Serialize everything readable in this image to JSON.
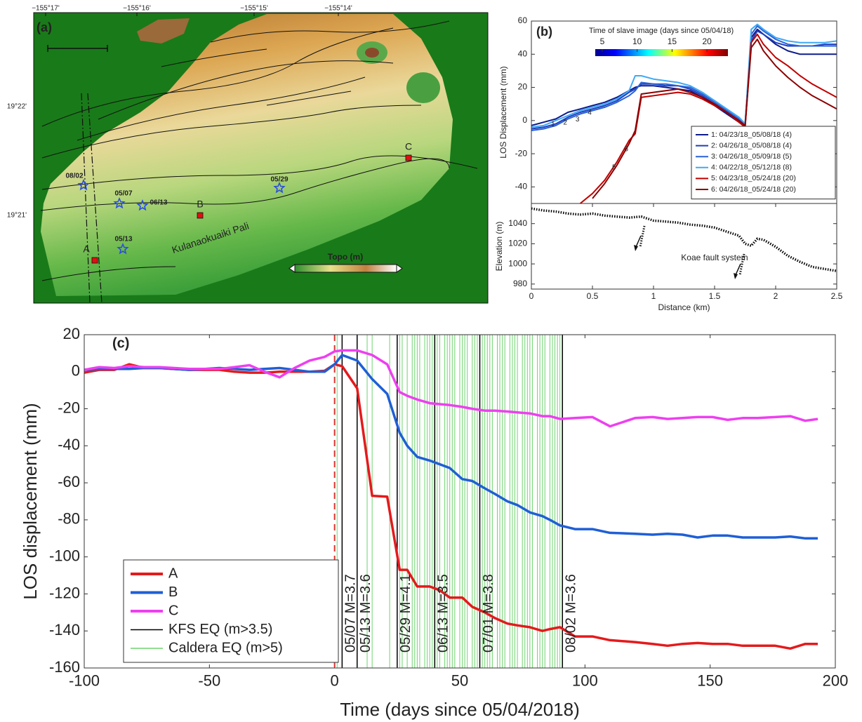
{
  "chart_data": [
    {
      "type": "map",
      "title": "(a)",
      "xtick_labels": [
        "−155°17'",
        "−155°16'",
        "−155°15'",
        "−155°14'"
      ],
      "ytick_labels": [
        "19°22'",
        "19°21'"
      ],
      "stars": [
        "08/02",
        "05/07",
        "06/13",
        "05/29",
        "05/13"
      ],
      "sites": [
        "A",
        "B",
        "C"
      ],
      "annotation": "Kulanaokuaiki Pali",
      "colorbar_label": "Topo (m)"
    },
    {
      "type": "line",
      "title": "(b)",
      "x": [
        0,
        0.1,
        0.2,
        0.3,
        0.4,
        0.5,
        0.6,
        0.7,
        0.8,
        0.85,
        0.9,
        1.0,
        1.1,
        1.2,
        1.3,
        1.4,
        1.5,
        1.6,
        1.7,
        1.75,
        1.8,
        1.85,
        1.9,
        2.0,
        2.1,
        2.2,
        2.3,
        2.4,
        2.5
      ],
      "series": [
        {
          "name": "1: 04/23/18_05/08/18 (4)",
          "tag": "1",
          "color": "#0d1b8c",
          "values": [
            -3,
            -1,
            1,
            5,
            7,
            9,
            11,
            14,
            18,
            20,
            21,
            21,
            20,
            19,
            18,
            14,
            9,
            4,
            -1,
            -3,
            50,
            55,
            52,
            46,
            42,
            40,
            40,
            40,
            40
          ]
        },
        {
          "name": "2: 04/26/18_05/08/18 (4)",
          "tag": "2",
          "color": "#1f3fbf",
          "values": [
            -5,
            -4,
            -2,
            2,
            5,
            7,
            9,
            12,
            17,
            19,
            22,
            22,
            21,
            21,
            19,
            15,
            10,
            5,
            0,
            -2,
            48,
            54,
            52,
            47,
            45,
            45,
            45,
            46,
            46
          ]
        },
        {
          "name": "3: 04/26/18_05/09/18 (5)",
          "tag": "3",
          "color": "#2a62d6",
          "values": [
            -6,
            -5,
            -3,
            1,
            4,
            6,
            8,
            11,
            15,
            18,
            23,
            22,
            22,
            21,
            20,
            16,
            11,
            6,
            1,
            -3,
            52,
            57,
            54,
            49,
            46,
            45,
            45,
            45,
            45
          ]
        },
        {
          "name": "4: 04/22/18_05/12/18 (8)",
          "tag": "4",
          "color": "#3fa9f5",
          "values": [
            -4,
            -3,
            0,
            3,
            6,
            8,
            10,
            13,
            18,
            27,
            27,
            25,
            24,
            23,
            21,
            17,
            12,
            7,
            2,
            -2,
            55,
            58,
            55,
            50,
            48,
            47,
            47,
            47,
            48
          ]
        },
        {
          "name": "5: 04/23/18_05/24/18 (20)",
          "tag": "5",
          "color": "#c00000",
          "values": [
            null,
            null,
            null,
            null,
            -50,
            -44,
            -36,
            -25,
            -12,
            -8,
            14,
            15,
            16,
            17,
            16,
            13,
            9,
            5,
            -1,
            -4,
            47,
            52,
            46,
            38,
            33,
            27,
            22,
            18,
            14
          ]
        },
        {
          "name": "6: 04/26/18_05/24/18 (20)",
          "tag": "6",
          "color": "#8b0000",
          "values": [
            null,
            null,
            null,
            null,
            null,
            -47,
            -38,
            -27,
            -14,
            -6,
            16,
            17,
            18,
            19,
            17,
            14,
            10,
            5,
            0,
            -3,
            44,
            49,
            42,
            33,
            26,
            20,
            15,
            11,
            7
          ]
        }
      ],
      "xlim": [
        0,
        2.5
      ],
      "ylim": [
        -50,
        60
      ],
      "yticks": [
        -40,
        -20,
        0,
        20,
        40,
        60
      ],
      "ylabel": "LOS Displacement (mm)",
      "legend": "lower right",
      "colorbar": {
        "label": "Time of slave image (days since 05/04/18)",
        "lim": [
          4,
          23
        ],
        "ticks": [
          5,
          10,
          15,
          20
        ]
      }
    },
    {
      "type": "line",
      "x": [
        0,
        0.1,
        0.2,
        0.3,
        0.4,
        0.5,
        0.6,
        0.7,
        0.8,
        0.9,
        1.0,
        1.1,
        1.2,
        1.3,
        1.4,
        1.5,
        1.6,
        1.7,
        1.75,
        1.8,
        1.85,
        1.9,
        2.0,
        2.1,
        2.2,
        2.3,
        2.5
      ],
      "series": [
        {
          "color": "#000000",
          "values": [
            1055,
            1053,
            1052,
            1050,
            1049,
            1050,
            1048,
            1047,
            1046,
            1047,
            1043,
            1042,
            1041,
            1039,
            1038,
            1036,
            1032,
            1028,
            1020,
            1018,
            1025,
            1024,
            1017,
            1008,
            1002,
            997,
            993
          ]
        }
      ],
      "xlim": [
        0,
        2.5
      ],
      "xticks": [
        0,
        0.5,
        1,
        1.5,
        2,
        2.5
      ],
      "ylim": [
        975,
        1060
      ],
      "yticks": [
        980,
        1000,
        1020,
        1040
      ],
      "xlabel": "Distance (km)",
      "ylabel": "Elevation (m)",
      "annotation": "Koae fault system"
    },
    {
      "type": "line",
      "title": "(c)",
      "x": [
        -100,
        -94,
        -88,
        -82,
        -76,
        -70,
        -58,
        -46,
        -40,
        -34,
        -28,
        -22,
        -16,
        -10,
        -4,
        0,
        3,
        9,
        15,
        21,
        26,
        29,
        33,
        38,
        42,
        46,
        51,
        55,
        60,
        64,
        69,
        73,
        78,
        83,
        86,
        90,
        96,
        103,
        110,
        120,
        127,
        133,
        139,
        145,
        151,
        157,
        163,
        169,
        176,
        182,
        188,
        193
      ],
      "series": [
        {
          "name": "A",
          "color": "#e41a1c",
          "values": [
            -0.5,
            1,
            1,
            4,
            2,
            2,
            1,
            1,
            0,
            -0.5,
            -0.5,
            0,
            0,
            0,
            0.5,
            4,
            3,
            -9,
            -67,
            -67.5,
            -107,
            -107,
            -116,
            -116,
            -118,
            -122,
            -122,
            -127,
            -130,
            -133,
            -136,
            -137,
            -138,
            -140,
            -139,
            -138,
            -143,
            -143,
            -145,
            -146,
            -147,
            -148,
            -147,
            -146.5,
            -147,
            -147,
            -148,
            -148,
            -148,
            -149.5,
            -147,
            -147
          ]
        },
        {
          "name": "B",
          "color": "#1f5fd6",
          "values": [
            1,
            1.5,
            1.5,
            1.5,
            2,
            2,
            1,
            2,
            1.5,
            1,
            1.5,
            2,
            1,
            0,
            0,
            4,
            9,
            6,
            -4,
            -12,
            -33,
            -40,
            -46,
            -48,
            -50,
            -52,
            -58,
            -59,
            -63,
            -66,
            -70,
            -72,
            -76,
            -78,
            -80,
            -83,
            -85,
            -85,
            -87,
            -87.5,
            -88,
            -87.5,
            -88,
            -89.5,
            -88.5,
            -88.5,
            -89.5,
            -89.5,
            -89.5,
            -89,
            -90,
            -90
          ]
        },
        {
          "name": "C",
          "color": "#ee3ff0",
          "values": [
            1,
            2.5,
            2,
            3,
            2.5,
            2.5,
            1.5,
            1.5,
            2.5,
            3.5,
            0,
            -3,
            2,
            6,
            8,
            11,
            11.5,
            11.5,
            9,
            4,
            -11,
            -13,
            -15,
            -17,
            -17.5,
            -18,
            -19,
            -20,
            -21,
            -21,
            -21.5,
            -22,
            -22.5,
            -24,
            -24,
            -25.5,
            -25,
            -24.5,
            -29.5,
            -25,
            -24.5,
            -25.5,
            -25,
            -24.5,
            -24.5,
            -26,
            -25,
            -25,
            -24.5,
            -24,
            -26.5,
            -25.5
          ]
        }
      ],
      "events": [
        {
          "name": "KFS EQ (m>3.5)",
          "color": "#000000",
          "x": [
            3,
            9,
            25,
            40,
            58,
            91
          ],
          "labels": [
            "05/07 M=3.7",
            "05/13 M=3.6",
            "05/29 M=4.1",
            "06/13 M=3.5",
            "07/01 M=3.8",
            "08/02 M=3.6"
          ]
        },
        {
          "name": "Caldera EQ (m>5)",
          "color": "#6fd36f",
          "x": [
            1,
            13,
            15,
            22,
            26,
            27,
            29,
            31,
            32,
            33,
            34,
            36,
            37,
            38,
            39,
            41,
            42,
            44,
            45,
            46,
            47,
            48,
            50,
            51,
            52,
            53,
            55,
            56,
            57,
            59,
            60,
            61,
            62,
            63,
            65,
            66,
            67,
            68,
            70,
            71,
            72,
            73,
            75,
            76,
            77,
            78,
            79,
            81,
            82,
            83,
            84,
            86,
            87,
            88,
            89,
            90
          ]
        }
      ],
      "marker_line": {
        "x": 0,
        "color": "#e03030"
      },
      "xlim": [
        -100,
        200
      ],
      "xticks": [
        -100,
        -50,
        0,
        50,
        100,
        150,
        200
      ],
      "ylim": [
        -160,
        20
      ],
      "yticks": [
        -160,
        -140,
        -120,
        -100,
        -80,
        -60,
        -40,
        -20,
        0,
        20
      ],
      "xlabel": "Time (days since 05/04/2018)",
      "ylabel": "LOS displacement (mm)",
      "legend": "lower left"
    }
  ]
}
